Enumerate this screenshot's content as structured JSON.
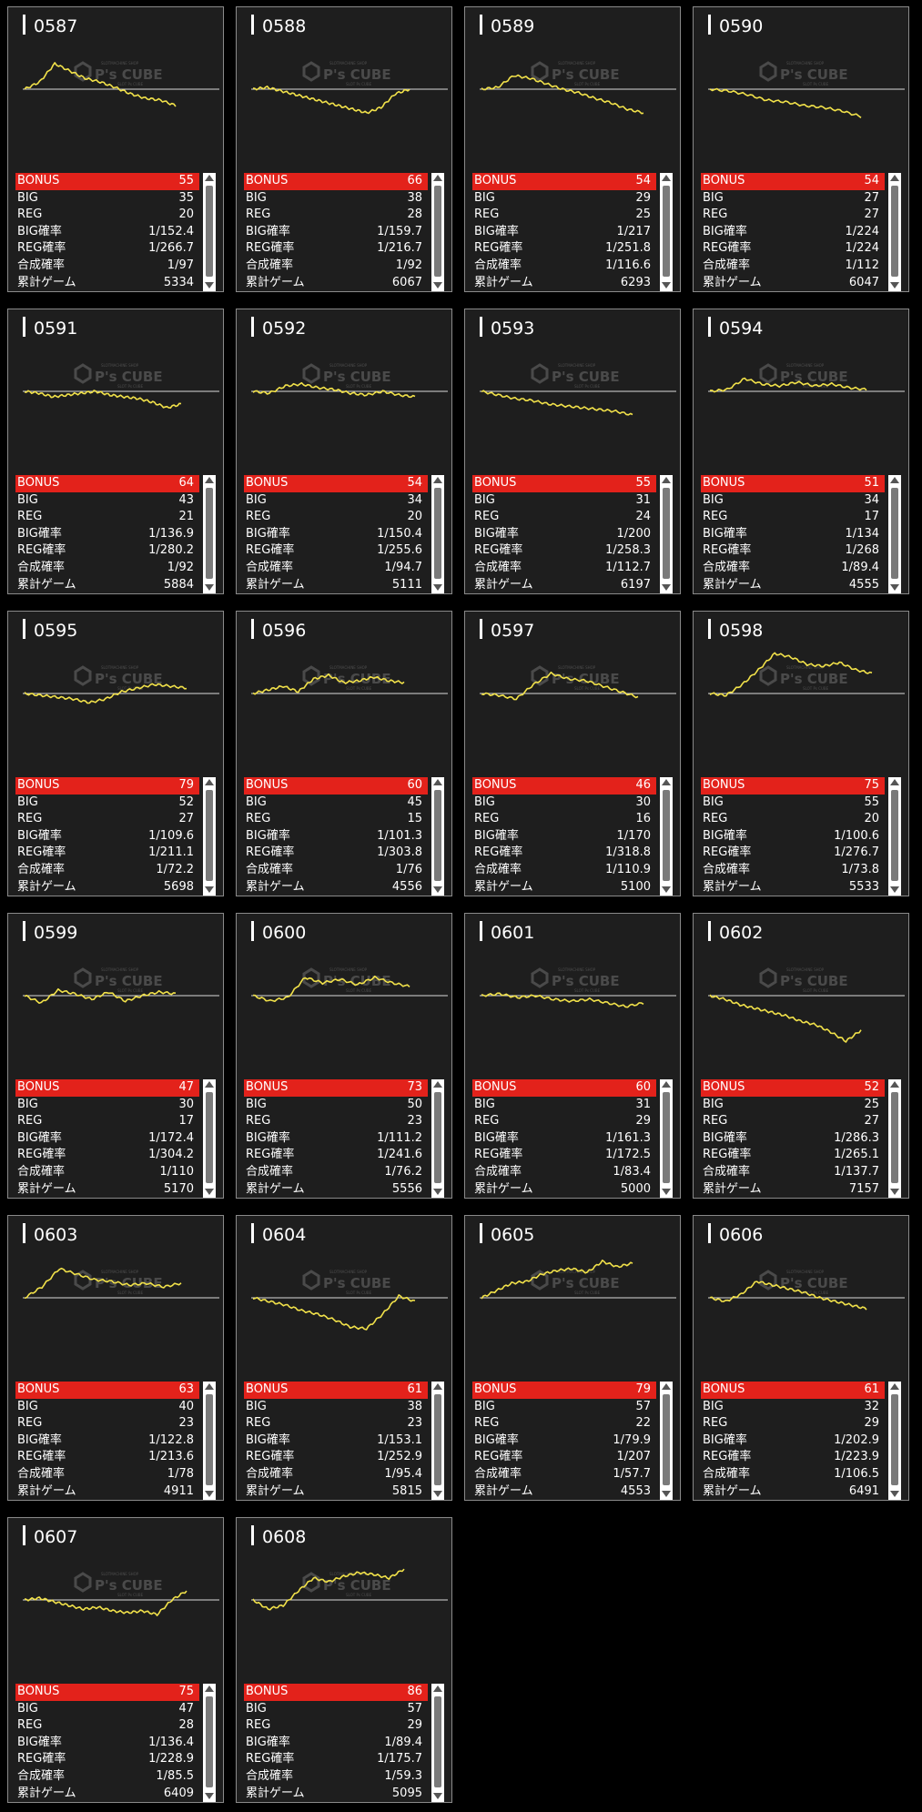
{
  "labels": {
    "bonus": "BONUS",
    "big": "BIG",
    "reg": "REG",
    "big_rate": "BIG確率",
    "reg_rate": "REG確率",
    "combined_rate": "合成確率",
    "total_games": "累計ゲーム"
  },
  "watermark": {
    "brand": "P's CUBE",
    "tagline_top": "SLOTMACHINE SHOP",
    "tagline_bottom": "SLOT Ps CUBE"
  },
  "colors": {
    "bonus_row": "#e3221b",
    "graph_line": "#f2e24a",
    "card_bg": "#1e1e1e"
  },
  "machines": [
    {
      "id": "0587",
      "bonus": "55",
      "big": "35",
      "reg": "20",
      "big_rate": "1/152.4",
      "reg_rate": "1/266.7",
      "combined_rate": "1/97",
      "total_games": "5334",
      "trend": [
        0,
        8,
        28,
        20,
        12,
        8,
        2,
        -5,
        -10,
        -12,
        -18
      ]
    },
    {
      "id": "0588",
      "bonus": "66",
      "big": "38",
      "reg": "28",
      "big_rate": "1/159.7",
      "reg_rate": "1/216.7",
      "combined_rate": "1/92",
      "total_games": "6067",
      "trend": [
        0,
        2,
        -2,
        -6,
        -10,
        -14,
        -18,
        -22,
        -26,
        -20,
        -5,
        0
      ]
    },
    {
      "id": "0589",
      "bonus": "54",
      "big": "29",
      "reg": "25",
      "big_rate": "1/217",
      "reg_rate": "1/251.8",
      "combined_rate": "1/116.6",
      "total_games": "6293",
      "trend": [
        0,
        2,
        15,
        12,
        6,
        0,
        -4,
        -10,
        -15,
        -22,
        -26
      ]
    },
    {
      "id": "0590",
      "bonus": "54",
      "big": "27",
      "reg": "27",
      "big_rate": "1/224",
      "reg_rate": "1/224",
      "combined_rate": "1/112",
      "total_games": "6047",
      "trend": [
        0,
        -2,
        -6,
        -12,
        -14,
        -18,
        -20,
        -24,
        -30
      ]
    },
    {
      "id": "0591",
      "bonus": "64",
      "big": "43",
      "reg": "21",
      "big_rate": "1/136.9",
      "reg_rate": "1/280.2",
      "combined_rate": "1/92",
      "total_games": "5884",
      "trend": [
        0,
        -2,
        -6,
        -4,
        -2,
        0,
        -4,
        -6,
        -8,
        -12,
        -18,
        -14
      ]
    },
    {
      "id": "0592",
      "bonus": "54",
      "big": "34",
      "reg": "20",
      "big_rate": "1/150.4",
      "reg_rate": "1/255.6",
      "combined_rate": "1/94.7",
      "total_games": "5111",
      "trend": [
        0,
        -2,
        6,
        8,
        4,
        2,
        -2,
        -4,
        0,
        -4,
        -6
      ]
    },
    {
      "id": "0593",
      "bonus": "55",
      "big": "31",
      "reg": "24",
      "big_rate": "1/200",
      "reg_rate": "1/258.3",
      "combined_rate": "1/112.7",
      "total_games": "6197",
      "trend": [
        0,
        -4,
        -8,
        -10,
        -14,
        -16,
        -18,
        -20,
        -22,
        -26
      ]
    },
    {
      "id": "0594",
      "bonus": "51",
      "big": "34",
      "reg": "17",
      "big_rate": "1/134",
      "reg_rate": "1/268",
      "combined_rate": "1/89.4",
      "total_games": "4555",
      "trend": [
        0,
        2,
        14,
        8,
        6,
        10,
        6,
        8,
        4,
        2
      ]
    },
    {
      "id": "0595",
      "bonus": "79",
      "big": "52",
      "reg": "27",
      "big_rate": "1/109.6",
      "reg_rate": "1/211.1",
      "combined_rate": "1/72.2",
      "total_games": "5698",
      "trend": [
        0,
        -2,
        -4,
        -6,
        -10,
        -6,
        2,
        6,
        10,
        8,
        6
      ]
    },
    {
      "id": "0596",
      "bonus": "60",
      "big": "45",
      "reg": "15",
      "big_rate": "1/101.3",
      "reg_rate": "1/303.8",
      "combined_rate": "1/76",
      "total_games": "4556",
      "trend": [
        0,
        4,
        8,
        2,
        16,
        20,
        12,
        14,
        18,
        14,
        12
      ]
    },
    {
      "id": "0597",
      "bonus": "46",
      "big": "30",
      "reg": "16",
      "big_rate": "1/170",
      "reg_rate": "1/318.8",
      "combined_rate": "1/110.9",
      "total_games": "5100",
      "trend": [
        0,
        -2,
        -6,
        10,
        22,
        16,
        14,
        8,
        2,
        -4
      ]
    },
    {
      "id": "0598",
      "bonus": "75",
      "big": "55",
      "reg": "20",
      "big_rate": "1/100.6",
      "reg_rate": "1/276.7",
      "combined_rate": "1/73.8",
      "total_games": "5533",
      "trend": [
        0,
        -2,
        10,
        26,
        44,
        40,
        32,
        30,
        34,
        26,
        22
      ]
    },
    {
      "id": "0599",
      "bonus": "47",
      "big": "30",
      "reg": "17",
      "big_rate": "1/172.4",
      "reg_rate": "1/304.2",
      "combined_rate": "1/110",
      "total_games": "5170",
      "trend": [
        0,
        -8,
        6,
        2,
        -4,
        4,
        -6,
        0,
        4,
        2
      ]
    },
    {
      "id": "0600",
      "bonus": "73",
      "big": "50",
      "reg": "23",
      "big_rate": "1/111.2",
      "reg_rate": "1/241.6",
      "combined_rate": "1/76.2",
      "total_games": "5556",
      "trend": [
        0,
        -6,
        -2,
        20,
        14,
        18,
        12,
        20,
        14,
        10
      ]
    },
    {
      "id": "0601",
      "bonus": "60",
      "big": "31",
      "reg": "29",
      "big_rate": "1/161.3",
      "reg_rate": "1/172.5",
      "combined_rate": "1/83.4",
      "total_games": "5000",
      "trend": [
        0,
        2,
        -2,
        0,
        -4,
        -6,
        -4,
        -8,
        -12,
        -8
      ]
    },
    {
      "id": "0602",
      "bonus": "52",
      "big": "25",
      "reg": "27",
      "big_rate": "1/286.3",
      "reg_rate": "1/265.1",
      "combined_rate": "1/137.7",
      "total_games": "7157",
      "trend": [
        0,
        -4,
        -10,
        -14,
        -18,
        -22,
        -28,
        -32,
        -40,
        -50,
        -38
      ]
    },
    {
      "id": "0603",
      "bonus": "63",
      "big": "40",
      "reg": "23",
      "big_rate": "1/122.8",
      "reg_rate": "1/213.6",
      "combined_rate": "1/78",
      "total_games": "4911",
      "trend": [
        0,
        12,
        32,
        26,
        20,
        18,
        14,
        16,
        12,
        16
      ]
    },
    {
      "id": "0604",
      "bonus": "61",
      "big": "38",
      "reg": "23",
      "big_rate": "1/153.1",
      "reg_rate": "1/252.9",
      "combined_rate": "1/95.4",
      "total_games": "5815",
      "trend": [
        0,
        -4,
        -8,
        -14,
        -18,
        -24,
        -32,
        -34,
        -18,
        2,
        -4
      ]
    },
    {
      "id": "0605",
      "bonus": "79",
      "big": "57",
      "reg": "22",
      "big_rate": "1/79.9",
      "reg_rate": "1/207",
      "combined_rate": "1/57.7",
      "total_games": "4553",
      "trend": [
        0,
        8,
        16,
        18,
        26,
        30,
        32,
        28,
        40,
        34,
        38
      ]
    },
    {
      "id": "0606",
      "bonus": "61",
      "big": "32",
      "reg": "29",
      "big_rate": "1/202.9",
      "reg_rate": "1/223.9",
      "combined_rate": "1/106.5",
      "total_games": "6491",
      "trend": [
        0,
        -4,
        4,
        18,
        14,
        10,
        6,
        0,
        -4,
        -8,
        -12
      ]
    },
    {
      "id": "0607",
      "bonus": "75",
      "big": "47",
      "reg": "28",
      "big_rate": "1/136.4",
      "reg_rate": "1/228.9",
      "combined_rate": "1/85.5",
      "total_games": "6409",
      "trend": [
        0,
        2,
        -2,
        -6,
        -10,
        -8,
        -12,
        -14,
        -12,
        -16,
        0,
        10
      ]
    },
    {
      "id": "0608",
      "bonus": "86",
      "big": "57",
      "reg": "29",
      "big_rate": "1/89.4",
      "reg_rate": "1/175.7",
      "combined_rate": "1/59.3",
      "total_games": "5095",
      "trend": [
        0,
        -10,
        -6,
        10,
        24,
        20,
        26,
        30,
        28,
        24,
        34
      ]
    }
  ]
}
